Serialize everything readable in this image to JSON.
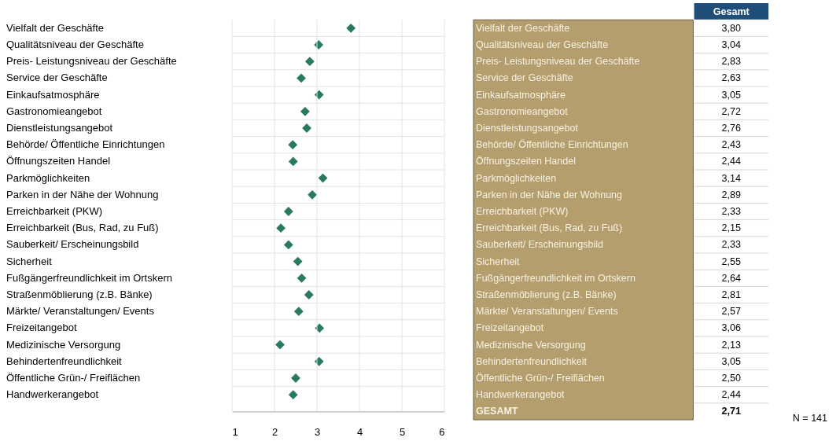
{
  "chart_data": {
    "type": "scatter",
    "orientation": "horizontal",
    "categories": [
      "Vielfalt der Geschäfte",
      "Qualitätsniveau der Geschäfte",
      "Preis- Leistungsniveau der Geschäfte",
      "Service der Geschäfte",
      "Einkaufsatmosphäre",
      "Gastronomieangebot",
      "Dienstleistungsangebot",
      "Behörde/ Öffentliche Einrichtungen",
      "Öffnungszeiten Handel",
      "Parkmöglichkeiten",
      "Parken in der Nähe der Wohnung",
      "Erreichbarkeit (PKW)",
      "Erreichbarkeit (Bus, Rad, zu Fuß)",
      "Sauberkeit/ Erscheinungsbild",
      "Sicherheit",
      "Fußgängerfreundlichkeit im Ortskern",
      "Straßenmöblierung (z.B. Bänke)",
      "Märkte/ Veranstaltungen/ Events",
      "Freizeitangebot",
      "Medizinische Versorgung",
      "Behindertenfreundlichkeit",
      "Öffentliche Grün-/ Freiflächen",
      "Handwerkerangebot"
    ],
    "values": [
      3.8,
      3.04,
      2.83,
      2.63,
      3.05,
      2.72,
      2.76,
      2.43,
      2.44,
      3.14,
      2.89,
      2.33,
      2.15,
      2.33,
      2.55,
      2.64,
      2.81,
      2.57,
      3.06,
      2.13,
      3.05,
      2.5,
      2.44
    ],
    "value_labels": [
      "3,80",
      "3,04",
      "2,83",
      "2,63",
      "3,05",
      "2,72",
      "2,76",
      "2,43",
      "2,44",
      "3,14",
      "2,89",
      "2,33",
      "2,15",
      "2,33",
      "2,55",
      "2,64",
      "2,81",
      "2,57",
      "3,06",
      "2,13",
      "3,05",
      "2,50",
      "2,44"
    ],
    "color": "#2a7a62",
    "marker": "diamond",
    "xlim": [
      1,
      6
    ],
    "xticks": [
      1,
      2,
      3,
      4,
      5,
      6
    ],
    "grid": true,
    "annotations": [
      "Gesamt",
      "GESAMT",
      "2,71",
      "N = 141"
    ]
  }
}
